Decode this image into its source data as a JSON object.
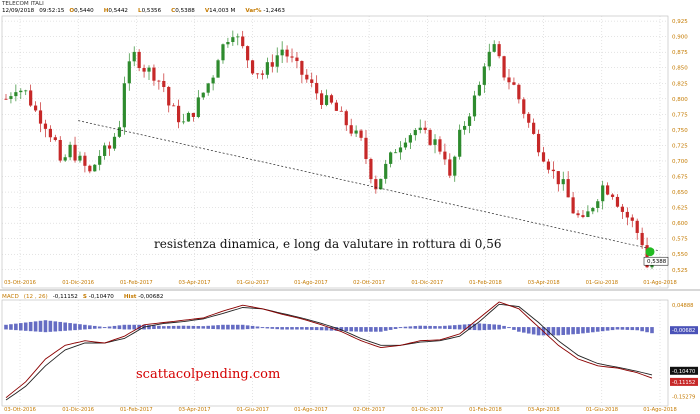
{
  "header": {
    "instrument": "TELECOM ITALI",
    "date": "12/09/2018",
    "time": "09:52:15",
    "o_label": "O",
    "open": "0,5440",
    "h_label": "H",
    "high": "0,5442",
    "l_label": "L",
    "low": "0,5356",
    "c_label": "C",
    "close": "0,5388",
    "v_label": "V",
    "volume": "14,003 M",
    "var_label": "Var%",
    "var_value": "-1,2463"
  },
  "macd_header": {
    "name": "MACD",
    "params": "(12 , 26)",
    "value": "-0,11152",
    "s_label": "S",
    "signal": "-0,10470",
    "hist_label": "Hist",
    "hist": "-0,00682"
  },
  "annotations": {
    "text": "resistenza dinamica, e long da valutare in rottura di 0,56",
    "watermark": "scattacolpending.com"
  },
  "colors": {
    "up": "#2e8b2e",
    "down": "#c62828",
    "macd": "#8b0000",
    "signal": "#222222",
    "hist": "#4a52b8",
    "grid": "#c8c8c8",
    "axis_text": "#c47a00",
    "highlight": "#22bb22"
  },
  "chart_data": [
    {
      "type": "candlestick",
      "title": "",
      "y_ticks": [
        "0,925",
        "0,900",
        "0,875",
        "0,850",
        "0,825",
        "0,800",
        "0,775",
        "0,750",
        "0,725",
        "0,700",
        "0,675",
        "0,650",
        "0,625",
        "0,600",
        "0,575",
        "0,550",
        "0,525"
      ],
      "ylim": [
        0.515,
        0.93
      ],
      "x_ticks": [
        "03-Ott-2016",
        "01-Dic-2016",
        "01-Feb-2017",
        "03-Apr-2017",
        "01-Giu-2017",
        "01-Ago-2017",
        "02-Ott-2017",
        "01-Dic-2017",
        "01-Feb-2018",
        "03-Apr-2018",
        "01-Giu-2018",
        "01-Ago-2018"
      ],
      "last_price": "0,5388",
      "grid": true,
      "trendline": {
        "from": {
          "x": "01-Dic-2016",
          "y": 0.765
        },
        "to": {
          "x": "12/09/2018",
          "y": 0.556
        }
      },
      "price_path": [
        [
          0,
          0.8
        ],
        [
          2,
          0.82
        ],
        [
          4,
          0.81
        ],
        [
          6,
          0.78
        ],
        [
          8,
          0.76
        ],
        [
          10,
          0.73
        ],
        [
          11,
          0.69
        ],
        [
          13,
          0.72
        ],
        [
          15,
          0.7
        ],
        [
          17,
          0.68
        ],
        [
          19,
          0.71
        ],
        [
          21,
          0.72
        ],
        [
          23,
          0.76
        ],
        [
          24,
          0.83
        ],
        [
          26,
          0.87
        ],
        [
          28,
          0.85
        ],
        [
          30,
          0.84
        ],
        [
          32,
          0.82
        ],
        [
          33,
          0.79
        ],
        [
          35,
          0.77
        ],
        [
          36,
          0.76
        ],
        [
          38,
          0.78
        ],
        [
          40,
          0.81
        ],
        [
          42,
          0.84
        ],
        [
          43,
          0.87
        ],
        [
          45,
          0.9
        ],
        [
          46,
          0.91
        ],
        [
          48,
          0.88
        ],
        [
          50,
          0.85
        ],
        [
          52,
          0.84
        ],
        [
          54,
          0.86
        ],
        [
          56,
          0.88
        ],
        [
          58,
          0.86
        ],
        [
          60,
          0.84
        ],
        [
          62,
          0.82
        ],
        [
          64,
          0.8
        ],
        [
          66,
          0.79
        ],
        [
          68,
          0.77
        ],
        [
          70,
          0.75
        ],
        [
          72,
          0.73
        ],
        [
          74,
          0.68
        ],
        [
          75,
          0.66
        ],
        [
          77,
          0.69
        ],
        [
          79,
          0.72
        ],
        [
          81,
          0.74
        ],
        [
          83,
          0.75
        ],
        [
          85,
          0.74
        ],
        [
          87,
          0.73
        ],
        [
          89,
          0.71
        ],
        [
          90,
          0.67
        ],
        [
          92,
          0.74
        ],
        [
          94,
          0.78
        ],
        [
          96,
          0.82
        ],
        [
          97,
          0.86
        ],
        [
          99,
          0.88
        ],
        [
          100,
          0.86
        ],
        [
          101,
          0.84
        ],
        [
          103,
          0.82
        ],
        [
          105,
          0.78
        ],
        [
          107,
          0.74
        ],
        [
          109,
          0.71
        ],
        [
          111,
          0.68
        ],
        [
          113,
          0.66
        ],
        [
          115,
          0.62
        ],
        [
          117,
          0.6
        ],
        [
          119,
          0.63
        ],
        [
          121,
          0.66
        ],
        [
          123,
          0.65
        ],
        [
          125,
          0.62
        ],
        [
          127,
          0.6
        ],
        [
          129,
          0.57
        ],
        [
          130,
          0.53
        ],
        [
          131,
          0.54
        ]
      ]
    },
    {
      "type": "macd",
      "y_ticks": [
        "0,04888",
        "-0,00682",
        "-0,10470",
        "-0,11152",
        "-0,15279"
      ],
      "ylim": [
        -0.16,
        0.055
      ],
      "x_ticks": [
        "03-Ott-2016",
        "01-Dic-2016",
        "01-Feb-2017",
        "03-Apr-2017",
        "01-Giu-2017",
        "01-Ago-2017",
        "02-Ott-2017",
        "01-Dic-2017",
        "01-Feb-2018",
        "03-Apr-2018",
        "01-Giu-2018",
        "01-Ago-2018"
      ],
      "macd": [
        [
          0,
          -0.155
        ],
        [
          4,
          -0.12
        ],
        [
          8,
          -0.07
        ],
        [
          12,
          -0.04
        ],
        [
          16,
          -0.03
        ],
        [
          20,
          -0.035
        ],
        [
          24,
          -0.02
        ],
        [
          28,
          0.005
        ],
        [
          32,
          0.01
        ],
        [
          36,
          0.015
        ],
        [
          40,
          0.02
        ],
        [
          44,
          0.035
        ],
        [
          48,
          0.048
        ],
        [
          52,
          0.04
        ],
        [
          56,
          0.028
        ],
        [
          60,
          0.018
        ],
        [
          64,
          0.005
        ],
        [
          68,
          -0.01
        ],
        [
          72,
          -0.03
        ],
        [
          76,
          -0.045
        ],
        [
          80,
          -0.04
        ],
        [
          84,
          -0.03
        ],
        [
          88,
          -0.028
        ],
        [
          92,
          -0.015
        ],
        [
          96,
          0.02
        ],
        [
          100,
          0.055
        ],
        [
          104,
          0.04
        ],
        [
          108,
          0.0
        ],
        [
          112,
          -0.04
        ],
        [
          116,
          -0.07
        ],
        [
          120,
          -0.085
        ],
        [
          124,
          -0.09
        ],
        [
          128,
          -0.1
        ],
        [
          131,
          -0.112
        ]
      ],
      "signal": [
        [
          0,
          -0.16
        ],
        [
          4,
          -0.13
        ],
        [
          8,
          -0.085
        ],
        [
          12,
          -0.05
        ],
        [
          16,
          -0.035
        ],
        [
          20,
          -0.035
        ],
        [
          24,
          -0.025
        ],
        [
          28,
          0.0
        ],
        [
          32,
          0.008
        ],
        [
          36,
          0.012
        ],
        [
          40,
          0.018
        ],
        [
          44,
          0.03
        ],
        [
          48,
          0.043
        ],
        [
          52,
          0.04
        ],
        [
          56,
          0.03
        ],
        [
          60,
          0.02
        ],
        [
          64,
          0.008
        ],
        [
          68,
          -0.006
        ],
        [
          72,
          -0.025
        ],
        [
          76,
          -0.04
        ],
        [
          80,
          -0.04
        ],
        [
          84,
          -0.033
        ],
        [
          88,
          -0.03
        ],
        [
          92,
          -0.02
        ],
        [
          96,
          0.012
        ],
        [
          100,
          0.05
        ],
        [
          104,
          0.045
        ],
        [
          108,
          0.01
        ],
        [
          112,
          -0.03
        ],
        [
          116,
          -0.062
        ],
        [
          120,
          -0.08
        ],
        [
          124,
          -0.088
        ],
        [
          128,
          -0.097
        ],
        [
          131,
          -0.105
        ]
      ]
    }
  ]
}
